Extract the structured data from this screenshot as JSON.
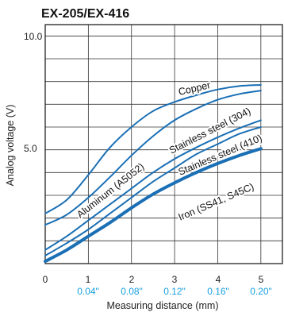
{
  "chart_data": {
    "type": "line",
    "title": "EX-205/EX-416",
    "xlabel": "Measuring distance  (mm)",
    "ylabel": "Analog voltage (V)",
    "xlim": [
      0,
      5.5
    ],
    "ylim": [
      0,
      10.5
    ],
    "x_ticks": [
      "0",
      "1",
      "2",
      "3",
      "4",
      "5"
    ],
    "x_ticks_inch": [
      "0.04\"",
      "0.08\"",
      "0.12\"",
      "0.16\"",
      "0.20\""
    ],
    "y_ticks": [
      "5.0",
      "10.0"
    ],
    "grid": true,
    "series": [
      {
        "name": "Copper",
        "color": "#1a6fb5",
        "bold": false,
        "x": [
          0,
          0.5,
          1,
          1.5,
          2,
          2.5,
          3,
          3.5,
          4,
          4.5,
          5
        ],
        "y": [
          2.2,
          2.8,
          3.9,
          5.1,
          6.0,
          6.7,
          7.1,
          7.4,
          7.65,
          7.8,
          7.85
        ]
      },
      {
        "name": "Stainless steel (304)",
        "color": "#1a6fb5",
        "bold": false,
        "x": [
          0,
          0.5,
          1,
          1.5,
          2,
          2.5,
          3,
          3.5,
          4,
          4.5,
          5
        ],
        "y": [
          1.7,
          2.15,
          2.9,
          3.8,
          4.75,
          5.6,
          6.3,
          6.8,
          7.2,
          7.45,
          7.6
        ]
      },
      {
        "name": "Stainless steel (410)",
        "color": "#1a6fb5",
        "bold": false,
        "x": [
          0,
          0.5,
          1,
          1.5,
          2,
          2.5,
          3,
          3.5,
          4,
          4.5,
          5
        ],
        "y": [
          0.6,
          1.2,
          1.9,
          2.6,
          3.3,
          4.0,
          4.6,
          5.1,
          5.55,
          5.95,
          6.3
        ]
      },
      {
        "name": "Iron (SS41, S45C)",
        "color": "#1a6fb5",
        "bold": true,
        "x": [
          0,
          0.5,
          1,
          1.5,
          2,
          2.5,
          3,
          3.5,
          4,
          4.5,
          5
        ],
        "y": [
          0.1,
          0.6,
          1.2,
          1.8,
          2.45,
          3.05,
          3.55,
          4.0,
          4.4,
          4.75,
          5.05
        ]
      },
      {
        "name": "Aluminum (A5052)",
        "color": "#1a6fb5",
        "bold": false,
        "x": [
          0,
          0.5,
          1,
          1.5,
          2,
          2.5,
          3,
          3.5,
          4,
          4.5,
          5
        ],
        "y": [
          0.35,
          0.9,
          1.5,
          2.2,
          2.9,
          3.6,
          4.2,
          4.8,
          5.25,
          5.7,
          6.0
        ]
      }
    ]
  }
}
